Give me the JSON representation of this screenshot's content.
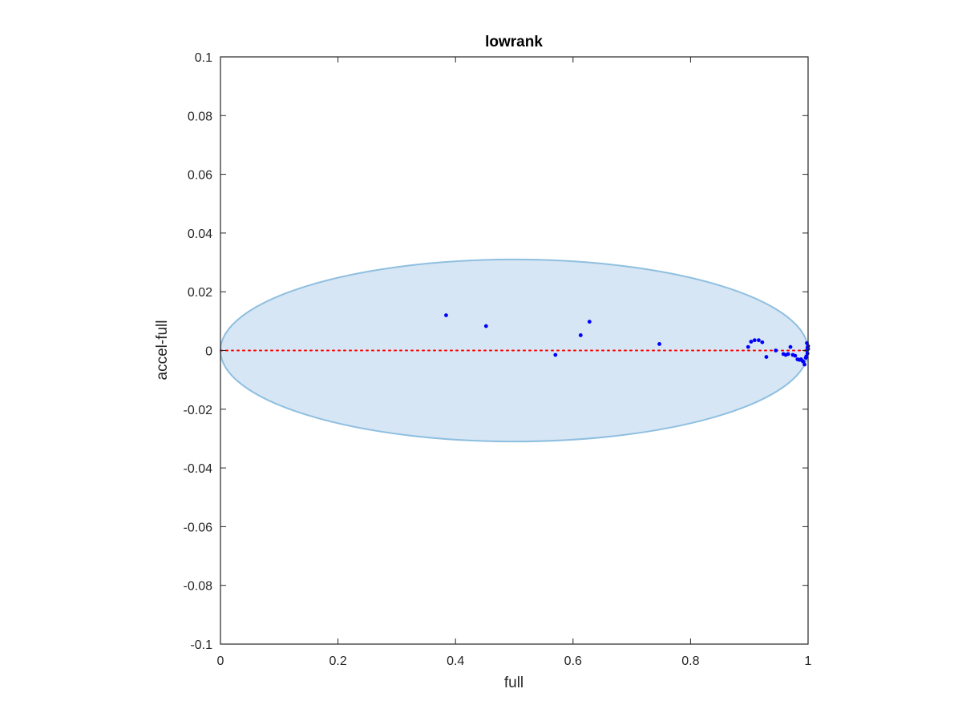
{
  "chart_data": {
    "type": "scatter",
    "title": "lowrank",
    "xlabel": "full",
    "ylabel": "accel-full",
    "xlim": [
      0,
      1
    ],
    "ylim": [
      -0.1,
      0.1
    ],
    "xticks": [
      "0",
      "0.2",
      "0.4",
      "0.6",
      "0.8",
      "1"
    ],
    "xtick_values": [
      0,
      0.2,
      0.4,
      0.6,
      0.8,
      1
    ],
    "yticks": [
      "-0.1",
      "-0.08",
      "-0.06",
      "-0.04",
      "-0.02",
      "0",
      "0.02",
      "0.04",
      "0.06",
      "0.08",
      "0.1"
    ],
    "ytick_values": [
      -0.1,
      -0.08,
      -0.06,
      -0.04,
      -0.02,
      0,
      0.02,
      0.04,
      0.06,
      0.08,
      0.1
    ],
    "grid": false,
    "reference_line": {
      "y": 0,
      "style": "dotted",
      "color": "#ff0000"
    },
    "ellipse": {
      "center": [
        0.5,
        0
      ],
      "x_radius": 0.5,
      "y_radius": 0.031,
      "fill": "#d6e6f4",
      "stroke": "#8fbfe0"
    },
    "series": [
      {
        "color": "#0000ff",
        "x": [
          0.384,
          0.452,
          0.57,
          0.613,
          0.628,
          0.747,
          0.898,
          0.903,
          0.909,
          0.916,
          0.922,
          0.929,
          0.945,
          0.958,
          0.962,
          0.966,
          0.97,
          0.974,
          0.978,
          0.982,
          0.985,
          0.988,
          0.99,
          0.992,
          0.994,
          0.996,
          0.997,
          0.998,
          0.999,
          1.0,
          1.0,
          0.999,
          0.998
        ],
        "y": [
          0.012,
          0.0083,
          -0.0015,
          0.0052,
          0.0098,
          0.0022,
          0.0012,
          0.003,
          0.0035,
          0.0035,
          0.0028,
          -0.0022,
          0.0,
          -0.0012,
          -0.0015,
          -0.0012,
          0.0012,
          -0.0015,
          -0.0018,
          -0.003,
          -0.0032,
          -0.003,
          -0.0035,
          -0.0038,
          -0.0048,
          -0.0025,
          -0.002,
          0.0025,
          0.001,
          0.0005,
          0.0015,
          -0.001,
          0.0
        ]
      }
    ]
  }
}
